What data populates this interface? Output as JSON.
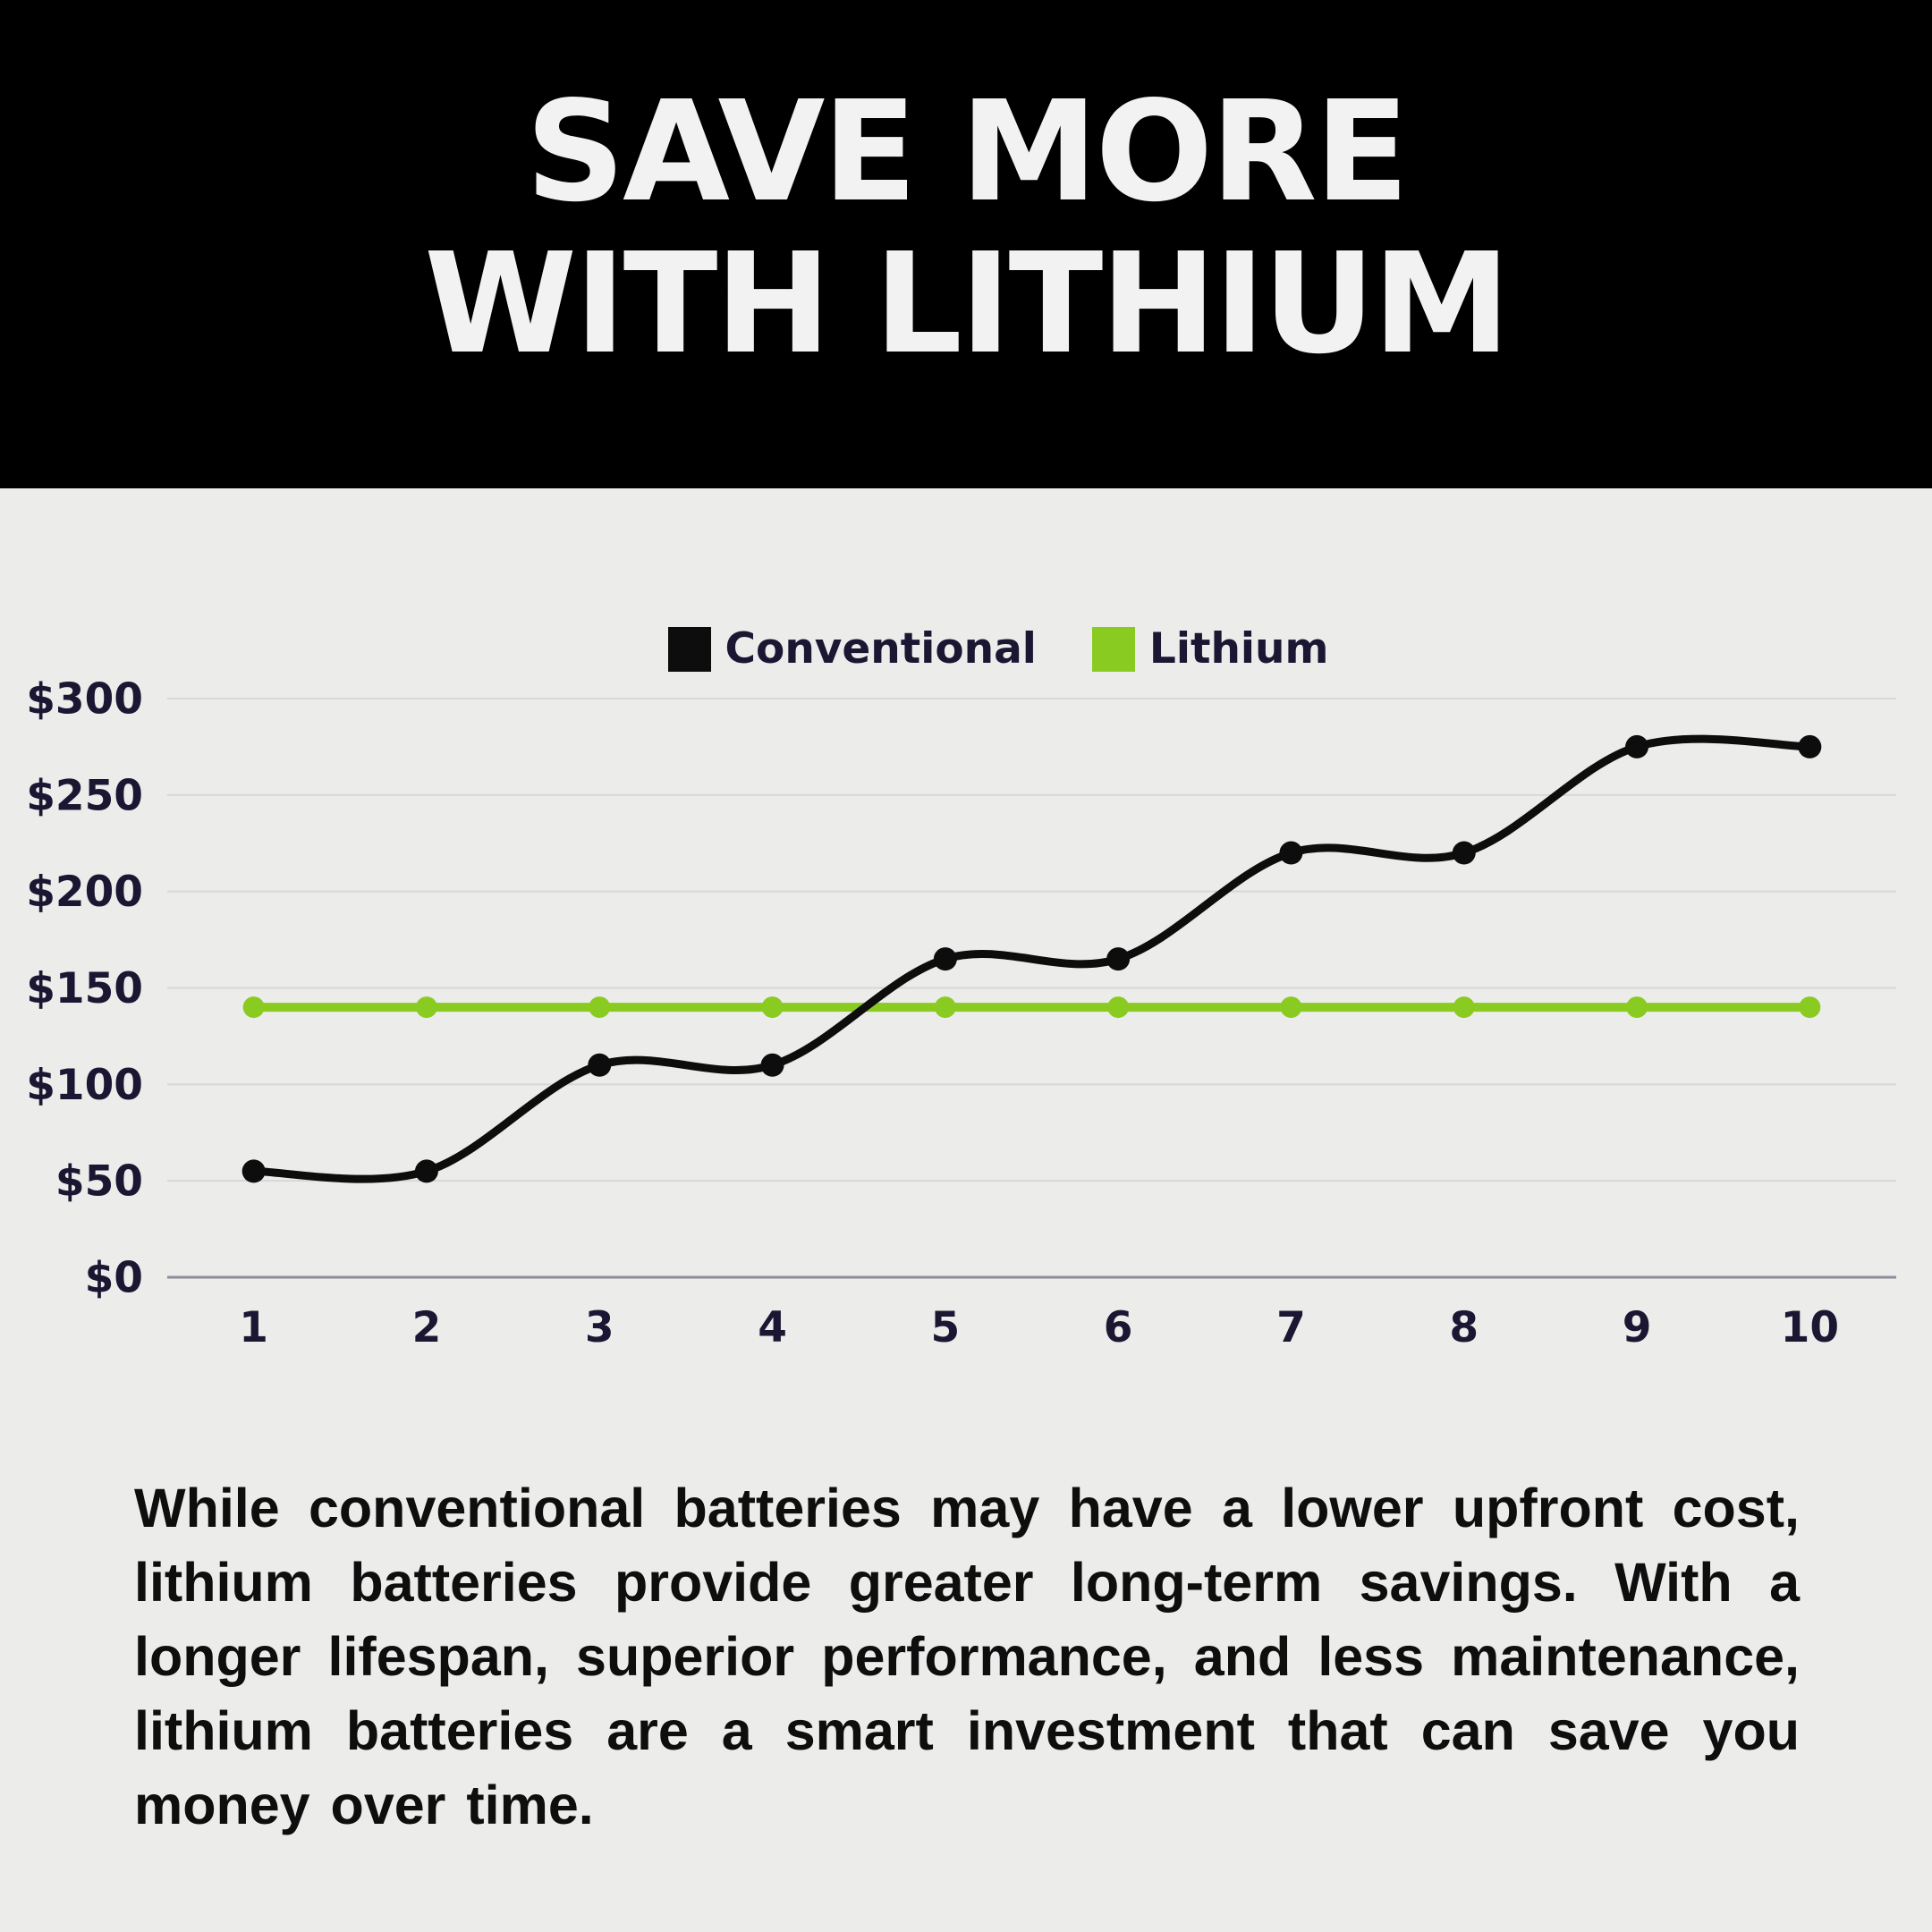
{
  "header": {
    "title_line1": "SAVE MORE",
    "title_line2": "WITH LITHIUM"
  },
  "legend": {
    "items": [
      {
        "label": "Conventional",
        "color": "#0d0d0d"
      },
      {
        "label": "Lithium",
        "color": "#8acb21"
      }
    ]
  },
  "chart_data": {
    "type": "line",
    "title": "",
    "categories": [
      "1",
      "2",
      "3",
      "4",
      "5",
      "6",
      "7",
      "8",
      "9",
      "10"
    ],
    "series": [
      {
        "name": "Conventional",
        "color": "#0d0d0d",
        "values": [
          55,
          55,
          110,
          110,
          165,
          165,
          220,
          220,
          275,
          275
        ]
      },
      {
        "name": "Lithium",
        "color": "#8acb21",
        "values": [
          140,
          140,
          140,
          140,
          140,
          140,
          140,
          140,
          140,
          140
        ]
      }
    ],
    "y_ticks": [
      {
        "value": 0,
        "label": "$0"
      },
      {
        "value": 50,
        "label": "$50"
      },
      {
        "value": 100,
        "label": "$100"
      },
      {
        "value": 150,
        "label": "$150"
      },
      {
        "value": 200,
        "label": "$200"
      },
      {
        "value": 250,
        "label": "$250"
      },
      {
        "value": 300,
        "label": "$300"
      }
    ],
    "ylim": [
      0,
      300
    ],
    "xlabel": "",
    "ylabel": "",
    "grid": "horizontal",
    "legend_position": "top",
    "curve": "smooth"
  },
  "body": {
    "paragraph": "While conventional batteries may have a lower upfront cost, lithium batteries provide greater long-term savings. With a longer lifespan, superior performance, and less maintenance, lithium batteries are a smart investment that can save you money over time."
  },
  "colors": {
    "page_background": "#ececea",
    "header_background": "#000000",
    "title_text": "#f2f2f2",
    "label_text": "#1b1733",
    "body_text": "#0e0e0e",
    "accent_green": "#8acb21",
    "series_black": "#0d0d0d",
    "gridline": "#d7d7d4",
    "axis_line": "#8e8d98"
  }
}
